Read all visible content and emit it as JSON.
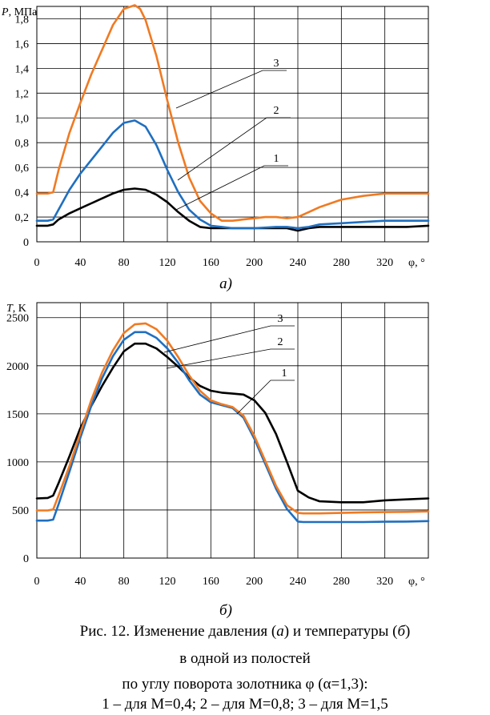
{
  "chart_data": [
    {
      "type": "line",
      "title": "",
      "sublabel": "а)",
      "ylabel_symbol": "P",
      "ylabel_unit": ", МПа",
      "xlabel": "φ, °",
      "xlim": [
        0,
        360
      ],
      "ylim": [
        0,
        1.9
      ],
      "grid": true,
      "x_ticks": [
        "0",
        "40",
        "80",
        "120",
        "160",
        "200",
        "240",
        "280",
        "320"
      ],
      "y_ticks": [
        {
          "v": 0,
          "label": "0"
        },
        {
          "v": 0.2,
          "label": "0,2"
        },
        {
          "v": 0.4,
          "label": "0,4"
        },
        {
          "v": 0.6,
          "label": "0,6"
        },
        {
          "v": 0.8,
          "label": "0,8"
        },
        {
          "v": 1.0,
          "label": "1,0"
        },
        {
          "v": 1.2,
          "label": "1,2"
        },
        {
          "v": 1.4,
          "label": "1,4"
        },
        {
          "v": 1.6,
          "label": "1,6"
        },
        {
          "v": 1.8,
          "label": "1,8"
        }
      ],
      "series": [
        {
          "name": "1",
          "color": "#000000",
          "x": [
            0,
            10,
            15,
            20,
            30,
            40,
            50,
            60,
            70,
            80,
            90,
            100,
            110,
            120,
            130,
            140,
            150,
            160,
            170,
            180,
            200,
            220,
            230,
            240,
            250,
            260,
            280,
            300,
            320,
            340,
            360
          ],
          "y": [
            0.13,
            0.13,
            0.14,
            0.18,
            0.23,
            0.27,
            0.31,
            0.35,
            0.39,
            0.42,
            0.43,
            0.42,
            0.38,
            0.32,
            0.24,
            0.17,
            0.12,
            0.11,
            0.11,
            0.11,
            0.11,
            0.11,
            0.11,
            0.09,
            0.11,
            0.12,
            0.12,
            0.12,
            0.12,
            0.12,
            0.13
          ]
        },
        {
          "name": "2",
          "color": "#1f6fc0",
          "x": [
            0,
            10,
            15,
            20,
            30,
            40,
            50,
            60,
            70,
            80,
            90,
            100,
            110,
            120,
            130,
            140,
            150,
            160,
            170,
            180,
            200,
            220,
            230,
            240,
            250,
            260,
            280,
            300,
            320,
            340,
            360
          ],
          "y": [
            0.17,
            0.17,
            0.18,
            0.26,
            0.42,
            0.55,
            0.66,
            0.77,
            0.88,
            0.96,
            0.98,
            0.93,
            0.78,
            0.58,
            0.4,
            0.26,
            0.18,
            0.13,
            0.12,
            0.11,
            0.11,
            0.12,
            0.12,
            0.11,
            0.12,
            0.14,
            0.15,
            0.16,
            0.17,
            0.17,
            0.17
          ]
        },
        {
          "name": "3",
          "color": "#f07a22",
          "x": [
            0,
            10,
            15,
            20,
            30,
            40,
            50,
            60,
            70,
            80,
            90,
            95,
            100,
            110,
            120,
            130,
            140,
            150,
            160,
            170,
            180,
            190,
            200,
            210,
            220,
            230,
            240,
            250,
            260,
            270,
            280,
            300,
            320,
            340,
            360
          ],
          "y": [
            0.39,
            0.39,
            0.4,
            0.58,
            0.88,
            1.12,
            1.35,
            1.55,
            1.75,
            1.88,
            1.91,
            1.88,
            1.79,
            1.5,
            1.14,
            0.8,
            0.52,
            0.33,
            0.23,
            0.17,
            0.17,
            0.18,
            0.19,
            0.2,
            0.2,
            0.19,
            0.2,
            0.24,
            0.28,
            0.31,
            0.34,
            0.37,
            0.39,
            0.39,
            0.39
          ]
        }
      ]
    },
    {
      "type": "line",
      "title": "",
      "sublabel": "б)",
      "ylabel_symbol": "T",
      "ylabel_unit": ", K",
      "xlabel": "φ, °",
      "xlim": [
        0,
        360
      ],
      "ylim": [
        0,
        2500
      ],
      "grid": true,
      "x_ticks": [
        "0",
        "40",
        "80",
        "120",
        "160",
        "200",
        "240",
        "280",
        "320"
      ],
      "y_ticks": [
        {
          "v": 0,
          "label": "0"
        },
        {
          "v": 500,
          "label": "500"
        },
        {
          "v": 1000,
          "label": "1000"
        },
        {
          "v": 1500,
          "label": "1500"
        },
        {
          "v": 2000,
          "label": "2000"
        },
        {
          "v": 2500,
          "label": "2500"
        }
      ],
      "series": [
        {
          "name": "1",
          "color": "#000000",
          "x": [
            0,
            10,
            15,
            20,
            30,
            40,
            50,
            60,
            70,
            80,
            90,
            100,
            110,
            120,
            130,
            140,
            150,
            160,
            170,
            180,
            190,
            200,
            210,
            220,
            230,
            240,
            250,
            260,
            280,
            300,
            320,
            340,
            360
          ],
          "y": [
            620,
            625,
            650,
            780,
            1060,
            1350,
            1580,
            1790,
            1980,
            2150,
            2230,
            2230,
            2180,
            2090,
            1990,
            1880,
            1790,
            1740,
            1720,
            1710,
            1700,
            1640,
            1510,
            1290,
            1000,
            700,
            630,
            590,
            580,
            580,
            600,
            610,
            620
          ]
        },
        {
          "name": "2",
          "color": "#1f6fc0",
          "x": [
            0,
            10,
            15,
            20,
            30,
            40,
            50,
            60,
            70,
            80,
            90,
            100,
            110,
            120,
            130,
            140,
            150,
            160,
            170,
            180,
            190,
            200,
            210,
            220,
            230,
            240,
            245,
            250,
            260,
            280,
            300,
            320,
            340,
            360
          ],
          "y": [
            390,
            390,
            400,
            560,
            900,
            1250,
            1580,
            1870,
            2100,
            2270,
            2350,
            2350,
            2290,
            2180,
            2030,
            1850,
            1700,
            1620,
            1590,
            1560,
            1460,
            1240,
            980,
            720,
            510,
            380,
            375,
            375,
            375,
            375,
            375,
            378,
            380,
            385
          ]
        },
        {
          "name": "3",
          "color": "#f07a22",
          "x": [
            0,
            10,
            15,
            20,
            30,
            40,
            50,
            60,
            70,
            80,
            90,
            100,
            110,
            120,
            130,
            140,
            150,
            160,
            170,
            180,
            190,
            200,
            210,
            220,
            230,
            240,
            245,
            250,
            260,
            280,
            300,
            320,
            340,
            360
          ],
          "y": [
            495,
            495,
            505,
            650,
            960,
            1300,
            1640,
            1930,
            2160,
            2340,
            2430,
            2440,
            2380,
            2260,
            2090,
            1900,
            1740,
            1640,
            1600,
            1570,
            1480,
            1270,
            1010,
            750,
            550,
            470,
            465,
            465,
            465,
            470,
            475,
            478,
            480,
            485
          ]
        }
      ]
    }
  ],
  "caption": {
    "prefix": "Рис. 12. Изменение давления (",
    "a": "а",
    "middle": ") и температуры (",
    "b": "б",
    "suffix": ")",
    "line2": "в одной из полостей",
    "line3": "по углу поворота золотника φ (α=1,3):",
    "line4": "1 – для M=0,4; 2 – для M=0,8; 3 – для M=1,5"
  }
}
